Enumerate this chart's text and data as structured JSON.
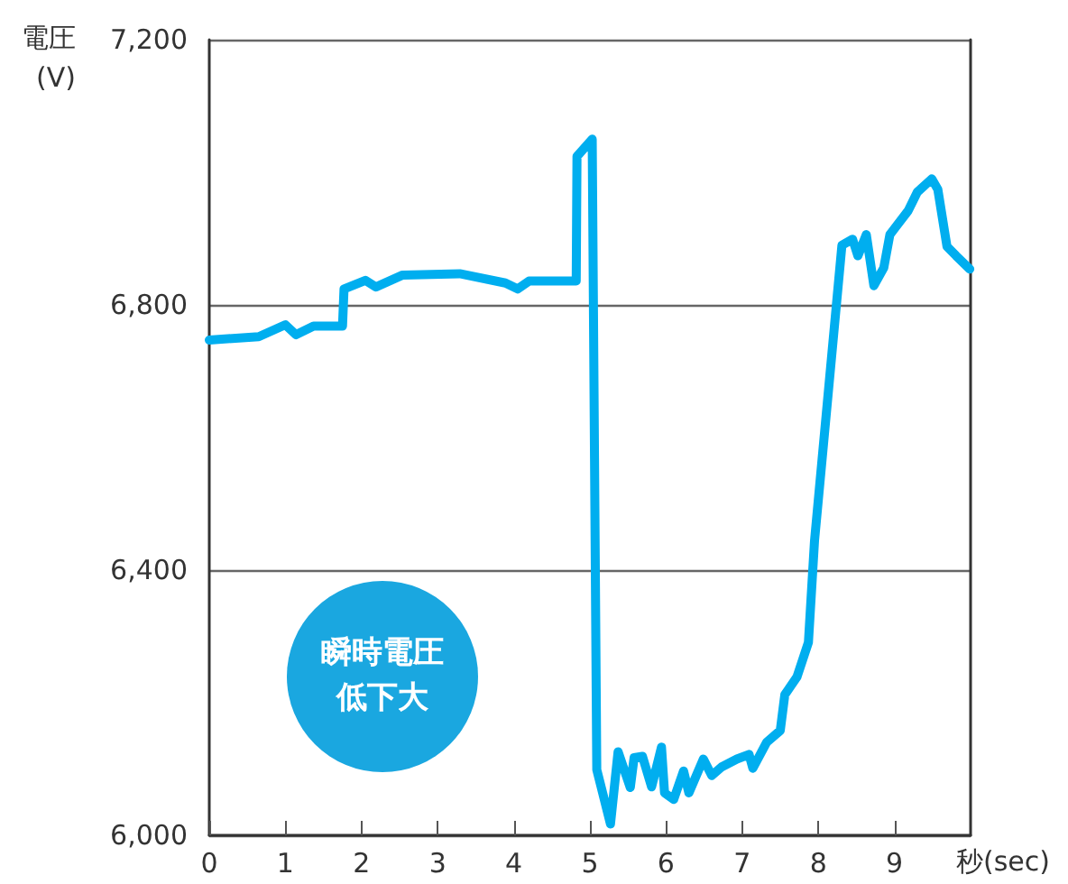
{
  "chart_data": {
    "type": "line",
    "ylabel": "電圧\n(V)",
    "xlabel": "秒(sec)",
    "annotations": [
      "瞬時電圧低下大"
    ],
    "xlim": [
      0,
      10
    ],
    "xticks": [
      0,
      1,
      2,
      3,
      4,
      5,
      6,
      7,
      8,
      9
    ],
    "ylim": [
      6000,
      7200
    ],
    "yticks": [
      {
        "value": 6000,
        "label": "6,000"
      },
      {
        "value": 6400,
        "label": "6,400"
      },
      {
        "value": 6800,
        "label": "6,800"
      },
      {
        "value": 7200,
        "label": "7,200"
      }
    ],
    "grid": "y",
    "marker": "none",
    "line_style": "solid",
    "series": [
      {
        "color": "#00aeef",
        "x": [
          0,
          0.65,
          1.0,
          1.14,
          1.37,
          1.75,
          1.77,
          2.05,
          2.19,
          2.54,
          3.29,
          3.89,
          4.05,
          4.2,
          4.82,
          4.83,
          5.03,
          5.09,
          5.27,
          5.37,
          5.53,
          5.58,
          5.69,
          5.81,
          5.94,
          5.98,
          6.1,
          6.23,
          6.3,
          6.49,
          6.6,
          6.73,
          6.93,
          7.09,
          7.14,
          7.32,
          7.5,
          7.56,
          7.72,
          7.87,
          7.95,
          8.31,
          8.45,
          8.52,
          8.63,
          8.73,
          8.86,
          8.94,
          9.18,
          9.3,
          9.49,
          9.57,
          9.69,
          9.81,
          9.99
        ],
        "values": [
          6747,
          6752,
          6770,
          6755,
          6768,
          6768,
          6824,
          6837,
          6827,
          6845,
          6847,
          6833,
          6824,
          6836,
          6836,
          7024,
          7050,
          6099,
          6017,
          6126,
          6072,
          6117,
          6119,
          6073,
          6133,
          6064,
          6054,
          6097,
          6064,
          6115,
          6090,
          6103,
          6115,
          6122,
          6101,
          6140,
          6158,
          6212,
          6239,
          6291,
          6444,
          6890,
          6899,
          6874,
          6906,
          6829,
          6856,
          6906,
          6942,
          6970,
          6990,
          6974,
          6888,
          6874,
          6854
        ]
      }
    ]
  }
}
